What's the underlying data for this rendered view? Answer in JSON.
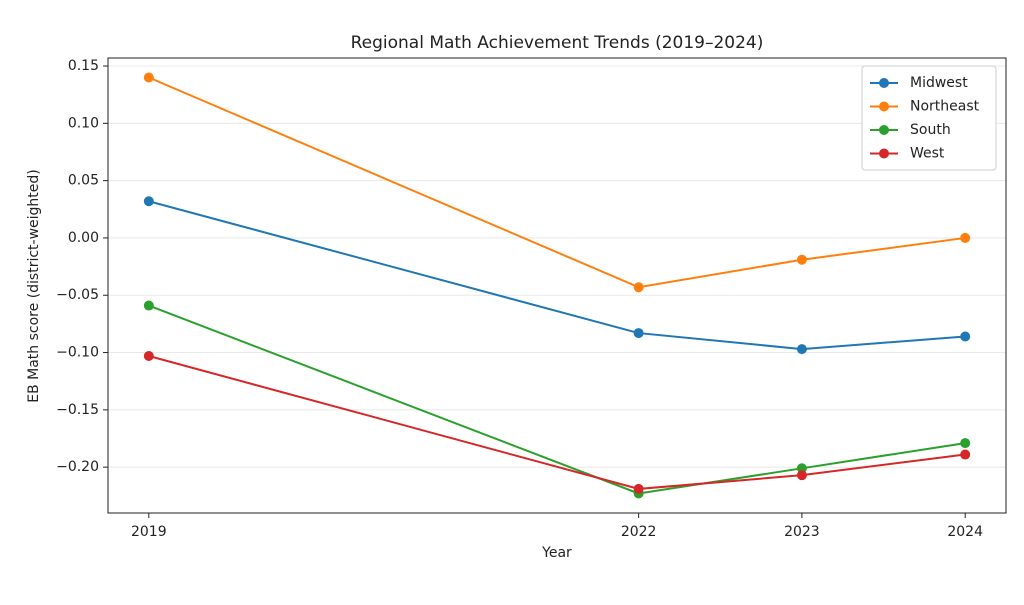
{
  "chart_data": {
    "type": "line",
    "title": "Regional Math Achievement Trends (2019–2024)",
    "x_label": "Year",
    "y_label": "EB Math score (district-weighted)",
    "x": [
      2019,
      2022,
      2023,
      2024
    ],
    "xlim": [
      2018.75,
      2024.25
    ],
    "xticks": [
      2019,
      2022,
      2023,
      2024
    ],
    "ylim": [
      -0.24,
      0.157
    ],
    "yticks": [
      0.15,
      {
        "value": 0.1,
        "label": "0.10"
      },
      0.05,
      {
        "value": 0,
        "label": "0.00"
      },
      {
        "value": -0.05,
        "label": "−0.05"
      },
      {
        "value": -0.1,
        "label": "−0.10"
      },
      {
        "value": -0.15,
        "label": "−0.15"
      },
      {
        "value": -0.2,
        "label": "−0.20"
      }
    ],
    "grid": true,
    "legend": "upper right",
    "series": [
      {
        "name": "Midwest",
        "color": "#1f77b4",
        "values": [
          0.032,
          -0.083,
          -0.097,
          -0.086
        ]
      },
      {
        "name": "Northeast",
        "color": "#ff7f0e",
        "values": [
          0.14,
          -0.043,
          -0.019,
          0.0
        ]
      },
      {
        "name": "South",
        "color": "#2ca02c",
        "values": [
          -0.059,
          -0.223,
          -0.201,
          -0.179
        ]
      },
      {
        "name": "West",
        "color": "#d62728",
        "values": [
          -0.103,
          -0.219,
          -0.207,
          -0.189
        ]
      }
    ]
  }
}
